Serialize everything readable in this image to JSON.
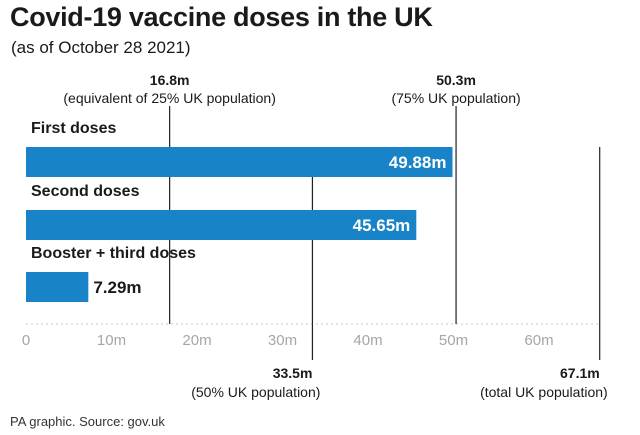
{
  "header": {
    "title": "Covid-19 vaccine doses in the UK",
    "subtitle": "(as of October 28 2021)"
  },
  "footer": {
    "source": "PA graphic. Source: gov.uk"
  },
  "colors": {
    "bar": "#1883c6",
    "bar_label_inside": "#ffffff",
    "text": "#1a1a1a",
    "reference_line": "#222222",
    "axis": "#c8c8c8",
    "tick_label": "#a6a6a6"
  },
  "chart_data": {
    "type": "bar",
    "orientation": "horizontal",
    "unit": "m",
    "categories": [
      "First doses",
      "Second doses",
      "Booster + third doses"
    ],
    "values": [
      49.88,
      45.65,
      7.29
    ],
    "value_labels": [
      "49.88m",
      "45.65m",
      "7.29m"
    ],
    "xlim": [
      0,
      67.1
    ],
    "xticks": [
      0,
      10,
      20,
      30,
      40,
      50,
      60
    ],
    "xtick_labels": [
      "0",
      "10m",
      "20m",
      "30m",
      "40m",
      "50m",
      "60m"
    ],
    "grid": false,
    "reference_lines": [
      {
        "value": 16.8,
        "label": "16.8m",
        "sublabel": "(equivalent of 25% UK population)",
        "position": "top"
      },
      {
        "value": 50.3,
        "label": "50.3m",
        "sublabel": "(75% UK population)",
        "position": "top"
      },
      {
        "value": 33.5,
        "label": "33.5m",
        "sublabel": "(50% UK population)",
        "position": "bottom"
      },
      {
        "value": 67.1,
        "label": "67.1m",
        "sublabel": "(total UK population)",
        "position": "bottom"
      }
    ]
  }
}
